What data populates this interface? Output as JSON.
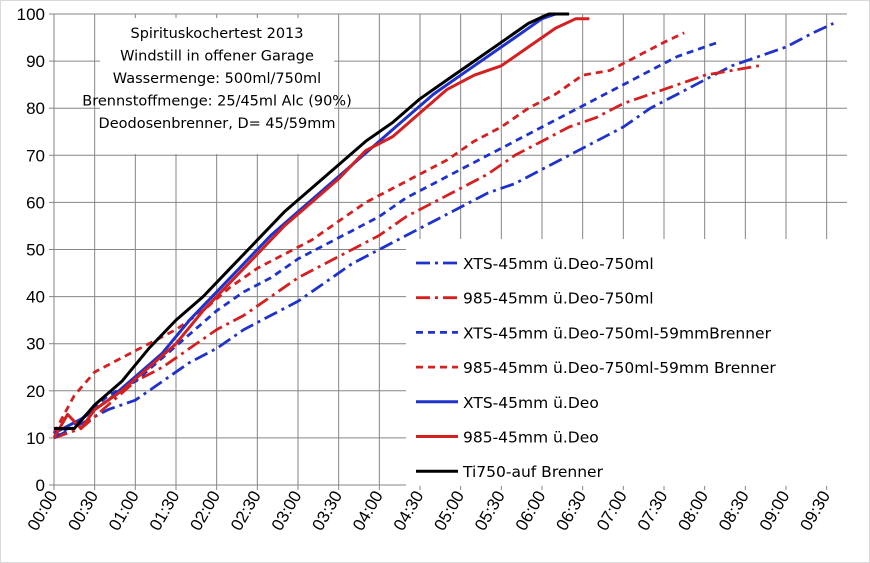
{
  "chart_data": {
    "type": "line",
    "title": "",
    "annotation_lines": [
      "Spirituskochertest 2013",
      "Windstill in offener Garage",
      "Wassermenge: 500ml/750ml",
      "Brennstoffmenge: 25/45ml Alc (90%)",
      "Deodosenbrenner, D= 45/59mm"
    ],
    "xlabel": "",
    "ylabel": "",
    "ylim": [
      0,
      100
    ],
    "yticks": [
      0,
      10,
      20,
      30,
      40,
      50,
      60,
      70,
      80,
      90,
      100
    ],
    "x_unit": "mm:ss",
    "xlim": [
      "00:00",
      "09:45"
    ],
    "xticks": [
      "00:00",
      "00:30",
      "01:00",
      "01:30",
      "02:00",
      "02:30",
      "03:00",
      "03:30",
      "04:00",
      "04:30",
      "05:00",
      "05:30",
      "06:00",
      "06:30",
      "07:00",
      "07:30",
      "08:00",
      "08:30",
      "09:00",
      "09:30"
    ],
    "grid": "vertical and horizontal",
    "legend_position": "bottom-right",
    "series": [
      {
        "name": "XTS-45mm ü.Deo-750ml",
        "color": "#1f33cc",
        "style": "dash-dot",
        "x": [
          "00:00",
          "00:20",
          "00:40",
          "01:00",
          "01:20",
          "01:40",
          "02:00",
          "02:20",
          "02:40",
          "03:00",
          "03:20",
          "03:40",
          "04:00",
          "04:20",
          "04:40",
          "05:00",
          "05:20",
          "05:40",
          "06:00",
          "06:20",
          "06:40",
          "07:00",
          "07:20",
          "07:40",
          "08:00",
          "08:20",
          "08:40",
          "09:00",
          "09:20",
          "09:35"
        ],
        "y": [
          10,
          13,
          16,
          18,
          22,
          26,
          29,
          33,
          36,
          39,
          43,
          47,
          50,
          53,
          56,
          59,
          62,
          64,
          67,
          70,
          73,
          76,
          80,
          83,
          86,
          89,
          91,
          93,
          96,
          98
        ]
      },
      {
        "name": "985-45mm ü.Deo-750ml",
        "color": "#d42020",
        "style": "dash-dot",
        "x": [
          "00:00",
          "00:20",
          "00:40",
          "01:00",
          "01:20",
          "01:40",
          "02:00",
          "02:20",
          "02:40",
          "03:00",
          "03:20",
          "03:40",
          "04:00",
          "04:20",
          "04:40",
          "05:00",
          "05:20",
          "05:40",
          "06:00",
          "06:20",
          "06:40",
          "07:00",
          "07:20",
          "07:40",
          "08:00",
          "08:20",
          "08:40"
        ],
        "y": [
          10,
          12,
          17,
          22,
          25,
          29,
          33,
          36,
          40,
          44,
          47,
          50,
          53,
          57,
          60,
          63,
          66,
          70,
          73,
          76,
          78,
          81,
          83,
          85,
          87,
          88,
          89
        ]
      },
      {
        "name": "XTS-45mm ü.Deo-750ml-59mmBrenner",
        "color": "#1f33cc",
        "style": "short-dash",
        "x": [
          "00:00",
          "00:20",
          "00:40",
          "01:00",
          "01:20",
          "01:40",
          "02:00",
          "02:20",
          "02:40",
          "03:00",
          "03:20",
          "03:40",
          "04:00",
          "04:20",
          "04:40",
          "05:00",
          "05:20",
          "05:40",
          "06:00",
          "06:20",
          "06:40",
          "07:00",
          "07:20",
          "07:40",
          "08:00",
          "08:10"
        ],
        "y": [
          10,
          14,
          19,
          22,
          27,
          32,
          37,
          41,
          44,
          48,
          51,
          54,
          57,
          61,
          64,
          67,
          70,
          73,
          76,
          79,
          82,
          85,
          88,
          91,
          93,
          94
        ]
      },
      {
        "name": "985-45mm ü.Deo-750ml-59mm Brenner",
        "color": "#d42020",
        "style": "short-dash",
        "x": [
          "00:00",
          "00:15",
          "00:30",
          "00:50",
          "01:10",
          "01:30",
          "01:50",
          "02:10",
          "02:30",
          "02:50",
          "03:10",
          "03:30",
          "03:50",
          "04:10",
          "04:30",
          "04:50",
          "05:10",
          "05:30",
          "05:50",
          "06:10",
          "06:30",
          "06:50",
          "07:10",
          "07:30",
          "07:45"
        ],
        "y": [
          11,
          19,
          24,
          27,
          30,
          33,
          37,
          42,
          46,
          49,
          52,
          56,
          60,
          63,
          66,
          69,
          73,
          76,
          80,
          83,
          87,
          88,
          91,
          94,
          96
        ]
      },
      {
        "name": "XTS-45mm ü.Deo",
        "color": "#1f33cc",
        "style": "solid",
        "x": [
          "00:00",
          "00:20",
          "00:40",
          "01:00",
          "01:20",
          "01:40",
          "02:00",
          "02:20",
          "02:40",
          "03:00",
          "03:20",
          "03:40",
          "04:00",
          "04:20",
          "04:40",
          "05:00",
          "05:20",
          "05:40",
          "06:00",
          "06:10"
        ],
        "y": [
          11,
          14,
          18,
          23,
          28,
          35,
          41,
          47,
          53,
          58,
          63,
          68,
          73,
          78,
          83,
          87,
          91,
          95,
          99,
          100
        ]
      },
      {
        "name": "985-45mm ü.Deo",
        "color": "#d42020",
        "style": "solid",
        "x": [
          "00:00",
          "00:10",
          "00:20",
          "00:30",
          "00:50",
          "01:10",
          "01:30",
          "01:50",
          "02:10",
          "02:30",
          "02:50",
          "03:10",
          "03:30",
          "03:50",
          "04:10",
          "04:30",
          "04:50",
          "05:10",
          "05:30",
          "05:50",
          "06:10",
          "06:25",
          "06:35"
        ],
        "y": [
          10,
          15,
          12,
          16,
          20,
          25,
          30,
          37,
          43,
          49,
          55,
          60,
          65,
          71,
          74,
          79,
          84,
          87,
          89,
          93,
          97,
          99,
          99
        ]
      },
      {
        "name": "Ti750-auf Brenner",
        "color": "#000000",
        "style": "solid",
        "x": [
          "00:00",
          "00:15",
          "00:30",
          "00:50",
          "01:10",
          "01:30",
          "01:50",
          "02:10",
          "02:30",
          "02:50",
          "03:10",
          "03:30",
          "03:50",
          "04:10",
          "04:30",
          "04:50",
          "05:10",
          "05:30",
          "05:50",
          "06:05",
          "06:20"
        ],
        "y": [
          12,
          12,
          17,
          22,
          29,
          35,
          40,
          46,
          52,
          58,
          63,
          68,
          73,
          77,
          82,
          86,
          90,
          94,
          98,
          100,
          100
        ]
      }
    ]
  }
}
